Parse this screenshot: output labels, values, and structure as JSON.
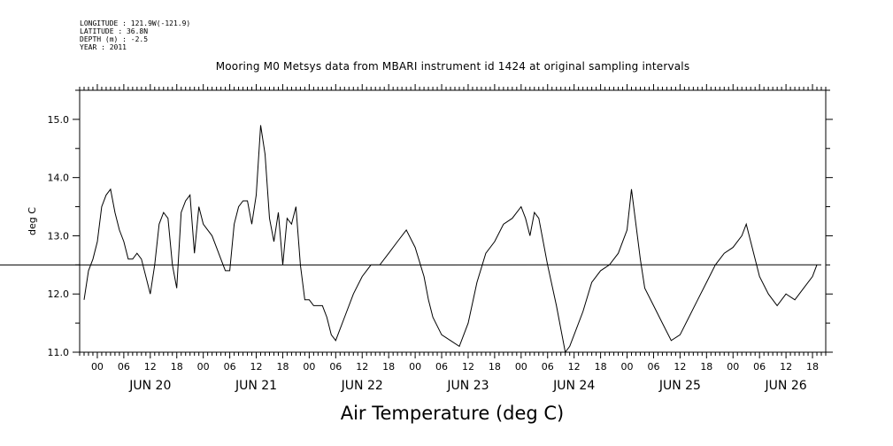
{
  "meta_lines": [
    "LONGITUDE : 121.9W(-121.9)",
    "LATITUDE : 36.8N",
    "DEPTH (m) : -2.5",
    "YEAR : 2011"
  ],
  "chart_data": {
    "type": "line",
    "title": "Mooring M0 Metsys data from MBARI instrument id 1424 at original sampling intervals",
    "xlabel": "Air Temperature (deg C)",
    "ylabel": "deg C",
    "ylim": [
      11.0,
      15.5
    ],
    "yticks": [
      "11.0",
      "12.0",
      "13.0",
      "14.0",
      "15.0"
    ],
    "xlim": [
      "2011-06-19T20:00",
      "2011-06-26T21:00"
    ],
    "x_hour_ticks": [
      "00",
      "06",
      "12",
      "18",
      "00",
      "06",
      "12",
      "18",
      "00",
      "06",
      "12",
      "18",
      "00",
      "06",
      "12",
      "18",
      "00",
      "06",
      "12",
      "18",
      "00",
      "06",
      "12",
      "18",
      "00",
      "06",
      "12",
      "18"
    ],
    "x_day_labels": [
      "JUN 20",
      "JUN 21",
      "JUN 22",
      "JUN 23",
      "JUN 24",
      "JUN 25",
      "JUN 26"
    ],
    "grid": false,
    "series": [
      {
        "values_x_time": [
          "2011-06-19T21:00",
          "2011-06-19T22:00",
          "2011-06-19T23:00",
          "2011-06-20T00:00",
          "2011-06-20T01:00",
          "2011-06-20T02:00",
          "2011-06-20T03:00",
          "2011-06-20T04:00",
          "2011-06-20T05:00",
          "2011-06-20T06:00",
          "2011-06-20T07:00",
          "2011-06-20T08:00",
          "2011-06-20T09:00",
          "2011-06-20T10:00",
          "2011-06-20T11:00",
          "2011-06-20T12:00",
          "2011-06-20T13:00",
          "2011-06-20T14:00",
          "2011-06-20T15:00",
          "2011-06-20T16:00",
          "2011-06-20T17:00",
          "2011-06-20T18:00",
          "2011-06-20T19:00",
          "2011-06-20T20:00",
          "2011-06-20T21:00",
          "2011-06-20T22:00",
          "2011-06-20T23:00",
          "2011-06-21T00:00",
          "2011-06-21T01:00",
          "2011-06-21T02:00",
          "2011-06-21T03:00",
          "2011-06-21T04:00",
          "2011-06-21T05:00",
          "2011-06-21T06:00",
          "2011-06-21T07:00",
          "2011-06-21T08:00",
          "2011-06-21T09:00",
          "2011-06-21T10:00",
          "2011-06-21T11:00",
          "2011-06-21T12:00",
          "2011-06-21T13:00",
          "2011-06-21T14:00",
          "2011-06-21T15:00",
          "2011-06-21T16:00",
          "2011-06-21T17:00",
          "2011-06-21T18:00",
          "2011-06-21T19:00",
          "2011-06-21T20:00",
          "2011-06-21T21:00",
          "2011-06-21T22:00",
          "2011-06-21T23:00",
          "2011-06-22T00:00",
          "2011-06-22T01:00",
          "2011-06-22T02:00",
          "2011-06-22T03:00",
          "2011-06-22T04:00",
          "2011-06-22T05:00",
          "2011-06-22T06:00",
          "2011-06-22T08:00",
          "2011-06-22T10:00",
          "2011-06-22T12:00",
          "2011-06-22T14:00",
          "2011-06-22T16:00",
          "2011-06-22T18:00",
          "2011-06-22T20:00",
          "2011-06-22T22:00",
          "2011-06-23T00:00",
          "2011-06-23T02:00",
          "2011-06-23T03:00",
          "2011-06-23T04:00",
          "2011-06-23T06:00",
          "2011-06-23T08:00",
          "2011-06-23T10:00",
          "2011-06-23T12:00",
          "2011-06-23T14:00",
          "2011-06-23T16:00",
          "2011-06-23T18:00",
          "2011-06-23T20:00",
          "2011-06-23T22:00",
          "2011-06-24T00:00",
          "2011-06-24T01:00",
          "2011-06-24T02:00",
          "2011-06-24T03:00",
          "2011-06-24T04:00",
          "2011-06-24T06:00",
          "2011-06-24T08:00",
          "2011-06-24T10:00",
          "2011-06-24T11:00",
          "2011-06-24T12:00",
          "2011-06-24T14:00",
          "2011-06-24T16:00",
          "2011-06-24T18:00",
          "2011-06-24T20:00",
          "2011-06-24T22:00",
          "2011-06-25T00:00",
          "2011-06-25T01:00",
          "2011-06-25T02:00",
          "2011-06-25T03:00",
          "2011-06-25T04:00",
          "2011-06-25T06:00",
          "2011-06-25T08:00",
          "2011-06-25T10:00",
          "2011-06-25T12:00",
          "2011-06-25T14:00",
          "2011-06-25T16:00",
          "2011-06-25T18:00",
          "2011-06-25T20:00",
          "2011-06-25T22:00",
          "2011-06-26T00:00",
          "2011-06-26T02:00",
          "2011-06-26T03:00",
          "2011-06-26T04:00",
          "2011-06-26T06:00",
          "2011-06-26T08:00",
          "2011-06-26T10:00",
          "2011-06-26T12:00",
          "2011-06-26T14:00",
          "2011-06-26T16:00",
          "2011-06-26T18:00",
          "2011-06-26T19:00",
          "2011-06-26T20:00"
        ],
        "values": [
          11.9,
          12.4,
          12.6,
          12.9,
          13.5,
          13.7,
          13.8,
          13.4,
          13.1,
          12.9,
          12.6,
          12.6,
          12.7,
          12.6,
          12.3,
          12.0,
          12.5,
          13.2,
          13.4,
          13.3,
          12.5,
          12.1,
          13.4,
          13.6,
          13.7,
          12.7,
          13.5,
          13.2,
          13.1,
          13.0,
          12.8,
          12.6,
          12.4,
          12.4,
          13.2,
          13.5,
          13.6,
          13.6,
          13.2,
          13.7,
          14.9,
          14.4,
          13.3,
          12.9,
          13.4,
          12.5,
          13.3,
          13.2,
          13.5,
          12.5,
          11.9,
          11.9,
          11.8,
          11.8,
          11.8,
          11.6,
          11.3,
          11.2,
          11.6,
          12.0,
          12.3,
          12.5,
          12.5,
          12.7,
          12.9,
          13.1,
          12.8,
          12.3,
          11.9,
          11.6,
          11.3,
          11.2,
          11.1,
          11.5,
          12.2,
          12.7,
          12.9,
          13.2,
          13.3,
          13.5,
          13.3,
          13.0,
          13.4,
          13.3,
          12.5,
          11.8,
          11.0,
          11.1,
          11.3,
          11.7,
          12.2,
          12.4,
          12.5,
          12.7,
          13.1,
          13.8,
          13.2,
          12.6,
          12.1,
          11.8,
          11.5,
          11.2,
          11.3,
          11.6,
          11.9,
          12.2,
          12.5,
          12.7,
          12.8,
          13.0,
          13.2,
          12.9,
          12.3,
          12.0,
          11.8,
          12.0,
          11.9,
          12.1,
          12.3,
          12.5,
          12.5,
          12.2
        ]
      }
    ]
  }
}
